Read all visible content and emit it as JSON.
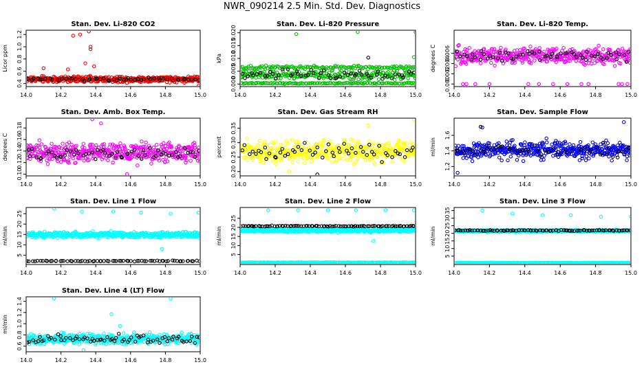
{
  "title": "NWR_090214  2.5 Min. Std. Dev. Diagnostics",
  "colors": {
    "red": "#ff0000",
    "green": "#00c000",
    "magenta": "#ff00ff",
    "yellow": "#ffff00",
    "blue": "#0000ff",
    "cyan": "#00ffff",
    "black": "#000000"
  },
  "chart_data": [
    {
      "type": "scatter",
      "title": "Stan. Dev. Li-820 CO2",
      "ylabel": "Licor ppm",
      "xlim": [
        14.0,
        15.0
      ],
      "ylim": [
        0.35,
        1.27
      ],
      "xticks": [
        14.0,
        14.2,
        14.4,
        14.6,
        14.8,
        15.0
      ],
      "xtick_labels": [
        "14.0",
        "14.2",
        "14.4",
        "14.6",
        "14.8",
        "15.0"
      ],
      "yticks": [
        0.4,
        0.6,
        0.8,
        1.0,
        1.2
      ],
      "ytick_labels": [
        "0.4",
        "0.6",
        "0.8",
        "1.0",
        "1.2"
      ],
      "series": [
        {
          "color": "red",
          "bands": [
            {
              "n": 460,
              "center": 0.47,
              "spread": 0.07
            }
          ],
          "outliers": [
            [
              14.27,
              1.18
            ],
            [
              14.31,
              1.2
            ],
            [
              14.36,
              1.25
            ],
            [
              14.37,
              1.0
            ],
            [
              14.37,
              0.96
            ],
            [
              14.24,
              0.63
            ],
            [
              14.34,
              0.73
            ],
            [
              14.39,
              0.68
            ],
            [
              14.1,
              0.65
            ],
            [
              14.99,
              0.36
            ]
          ]
        },
        {
          "color": "black",
          "bands": [
            {
              "n": 55,
              "center": 0.47,
              "spread": 0.04
            }
          ],
          "outliers": []
        }
      ]
    },
    {
      "type": "scatter",
      "title": "Stan. Dev. Li-820 Pressure",
      "ylabel": "kPa",
      "xlim": [
        14.0,
        15.0
      ],
      "ylim": [
        -0.001,
        0.021
      ],
      "xticks": [
        14.0,
        14.2,
        14.4,
        14.6,
        14.8,
        15.0
      ],
      "xtick_labels": [
        "14.0",
        "14.2",
        "14.4",
        "14.6",
        "14.8",
        "15.0"
      ],
      "yticks": [
        0.0,
        0.005,
        0.01,
        0.015,
        0.02
      ],
      "ytick_labels": [
        "0.000",
        "0.005",
        "0.010",
        "0.015",
        "0.020"
      ],
      "series": [
        {
          "color": "green",
          "bands": [
            {
              "n": 240,
              "center": 0.0035,
              "spread": 0.0025
            },
            {
              "n": 130,
              "center": 0.0065,
              "spread": 0.0008
            },
            {
              "n": 120,
              "center": 0.0003,
              "spread": 0.0003
            }
          ],
          "outliers": [
            [
              14.32,
              0.0195
            ],
            [
              14.67,
              0.0203
            ],
            [
              15.0,
              0.0203
            ],
            [
              14.99,
              0.0105
            ]
          ]
        },
        {
          "color": "black",
          "bands": [
            {
              "n": 55,
              "center": 0.0035,
              "spread": 0.003
            }
          ],
          "outliers": [
            [
              14.73,
              0.0103
            ]
          ]
        }
      ]
    },
    {
      "type": "scatter",
      "title": "Stan. Dev. Li-820 Temp.",
      "ylabel": "degrees C",
      "xlim": [
        14.0,
        15.0
      ],
      "ylim": [
        -0.0005,
        0.0105
      ],
      "xticks": [
        14.0,
        14.2,
        14.4,
        14.6,
        14.8,
        15.0
      ],
      "xtick_labels": [
        "14.0",
        "14.2",
        "14.4",
        "14.6",
        "14.8",
        "15.0"
      ],
      "yticks": [
        0.0,
        0.002,
        0.004,
        0.006
      ],
      "ytick_labels": [
        "0.000",
        "0.002",
        "0.004",
        "0.006"
      ],
      "series": [
        {
          "color": "magenta",
          "bands": [
            {
              "n": 420,
              "center": 0.0055,
              "spread": 0.0024
            }
          ],
          "outliers": [
            [
              14.05,
              0.0
            ],
            [
              14.07,
              0.0
            ],
            [
              14.12,
              0.0
            ],
            [
              14.2,
              0.0
            ],
            [
              14.42,
              0.0
            ],
            [
              14.48,
              0.0
            ],
            [
              14.56,
              0.0
            ],
            [
              14.64,
              0.0
            ],
            [
              14.72,
              0.0
            ],
            [
              14.76,
              0.0
            ],
            [
              14.93,
              0.0
            ],
            [
              14.95,
              0.0
            ],
            [
              14.98,
              0.0
            ]
          ]
        },
        {
          "color": "black",
          "bands": [
            {
              "n": 60,
              "center": 0.0055,
              "spread": 0.0018
            }
          ],
          "outliers": []
        }
      ]
    },
    {
      "type": "scatter",
      "title": "Stan. Dev. Amb. Box Temp.",
      "ylabel": "degrees C",
      "xlim": [
        14.0,
        15.0
      ],
      "ylim": [
        0.097,
        0.197
      ],
      "xticks": [
        14.0,
        14.2,
        14.4,
        14.6,
        14.8,
        15.0
      ],
      "xtick_labels": [
        "14.0",
        "14.2",
        "14.4",
        "14.6",
        "14.8",
        "15.0"
      ],
      "yticks": [
        0.1,
        0.12,
        0.14,
        0.16,
        0.18
      ],
      "ytick_labels": [
        "0.10",
        "0.12",
        "0.14",
        "0.16",
        "0.18"
      ],
      "series": [
        {
          "color": "magenta",
          "bands": [
            {
              "n": 430,
              "center": 0.137,
              "spread": 0.024
            }
          ],
          "outliers": [
            [
              14.38,
              0.195
            ],
            [
              14.43,
              0.188
            ],
            [
              14.58,
              0.1
            ]
          ]
        },
        {
          "color": "black",
          "bands": [
            {
              "n": 60,
              "center": 0.135,
              "spread": 0.015
            }
          ],
          "outliers": []
        }
      ]
    },
    {
      "type": "scatter",
      "title": "Stan. Dev. Gas Stream RH",
      "ylabel": "percent",
      "xlim": [
        14.0,
        15.0
      ],
      "ylim": [
        0.185,
        0.385
      ],
      "xticks": [
        14.0,
        14.2,
        14.4,
        14.6,
        14.8,
        15.0
      ],
      "xtick_labels": [
        "14.0",
        "14.2",
        "14.4",
        "14.6",
        "14.8",
        "15.0"
      ],
      "yticks": [
        0.2,
        0.25,
        0.3,
        0.35
      ],
      "ytick_labels": [
        "0.20",
        "0.25",
        "0.30",
        "0.35"
      ],
      "series": [
        {
          "color": "yellow",
          "bands": [
            {
              "n": 430,
              "center": 0.27,
              "spread": 0.055
            }
          ],
          "outliers": [
            [
              14.99,
              0.38
            ],
            [
              14.73,
              0.36
            ],
            [
              14.28,
              0.2
            ]
          ]
        },
        {
          "color": "black",
          "bands": [
            {
              "n": 55,
              "center": 0.27,
              "spread": 0.045
            }
          ],
          "outliers": [
            [
              14.44,
              0.19
            ]
          ]
        }
      ]
    },
    {
      "type": "scatter",
      "title": "Stan. Dev. Sample Flow",
      "ylabel": "ml/min",
      "xlim": [
        14.0,
        15.0
      ],
      "ylim": [
        1.08,
        1.82
      ],
      "xticks": [
        14.0,
        14.2,
        14.4,
        14.6,
        14.8,
        15.0
      ],
      "xtick_labels": [
        "14.0",
        "14.2",
        "14.4",
        "14.6",
        "14.8",
        "15.0"
      ],
      "yticks": [
        1.2,
        1.4,
        1.6
      ],
      "ytick_labels": [
        "1.2",
        "1.4",
        "1.6"
      ],
      "series": [
        {
          "color": "blue",
          "bands": [
            {
              "n": 450,
              "center": 1.41,
              "spread": 0.17
            }
          ],
          "outliers": [
            [
              14.96,
              1.77
            ],
            [
              14.16,
              1.7
            ],
            [
              14.02,
              1.12
            ]
          ]
        },
        {
          "color": "black",
          "bands": [
            {
              "n": 55,
              "center": 1.4,
              "spread": 0.12
            }
          ],
          "outliers": [
            [
              14.15,
              1.71
            ]
          ]
        }
      ]
    },
    {
      "type": "scatter",
      "title": "Stan. Dev. Line 1 Flow",
      "ylabel": "ml/min",
      "xlim": [
        14.0,
        15.0
      ],
      "ylim": [
        0.5,
        28.0
      ],
      "xticks": [
        14.0,
        14.2,
        14.4,
        14.6,
        14.8,
        15.0
      ],
      "xtick_labels": [
        "14.0",
        "14.2",
        "14.4",
        "14.6",
        "14.8",
        "15.0"
      ],
      "yticks": [
        5,
        10,
        15,
        20,
        25
      ],
      "ytick_labels": [
        "5",
        "10",
        "15",
        "20",
        "25"
      ],
      "series": [
        {
          "color": "cyan",
          "bands": [
            {
              "n": 520,
              "center": 14.8,
              "spread": 2.0
            }
          ],
          "outliers": [
            [
              14.16,
              27.5
            ],
            [
              14.32,
              26.0
            ],
            [
              14.5,
              26.0
            ],
            [
              14.66,
              25.5
            ],
            [
              14.83,
              25.0
            ],
            [
              14.99,
              25.5
            ],
            [
              14.78,
              8.0
            ]
          ]
        },
        {
          "color": "black",
          "bands": [
            {
              "n": 70,
              "center": 2.2,
              "spread": 0.3
            }
          ],
          "outliers": []
        }
      ]
    },
    {
      "type": "scatter",
      "title": "Stan. Dev. Line 2 Flow",
      "ylabel": "ml/min",
      "xlim": [
        14.0,
        15.0
      ],
      "ylim": [
        -0.5,
        31.0
      ],
      "xticks": [
        14.0,
        14.2,
        14.4,
        14.6,
        14.8,
        15.0
      ],
      "xtick_labels": [
        "14.0",
        "14.2",
        "14.4",
        "14.6",
        "14.8",
        "15.0"
      ],
      "yticks": [
        5,
        10,
        15,
        20,
        25
      ],
      "ytick_labels": [
        "5",
        "10",
        "15",
        "20",
        "25"
      ],
      "series": [
        {
          "color": "cyan",
          "bands": [
            {
              "n": 520,
              "center": 18.3,
              "spread": 1.4
            },
            {
              "n": 240,
              "center": 0.6,
              "spread": 0.2
            }
          ],
          "outliers": [
            [
              14.16,
              29.5
            ],
            [
              14.33,
              29.5
            ],
            [
              14.5,
              29.5
            ],
            [
              14.66,
              29.5
            ],
            [
              14.83,
              29.5
            ],
            [
              14.99,
              29.5
            ],
            [
              14.76,
              12.5
            ]
          ]
        },
        {
          "color": "black",
          "bands": [
            {
              "n": 90,
              "center": 20.7,
              "spread": 0.35
            }
          ],
          "outliers": []
        }
      ]
    },
    {
      "type": "scatter",
      "title": "Stan. Dev. Line 3 Flow",
      "ylabel": "ml/min",
      "xlim": [
        14.0,
        15.0
      ],
      "ylim": [
        -0.5,
        37.0
      ],
      "xticks": [
        14.0,
        14.2,
        14.4,
        14.6,
        14.8,
        15.0
      ],
      "xtick_labels": [
        "14.0",
        "14.2",
        "14.4",
        "14.6",
        "14.8",
        "15.0"
      ],
      "yticks": [
        5,
        10,
        15,
        20,
        25,
        30,
        35
      ],
      "ytick_labels": [
        "5",
        "10",
        "15",
        "20",
        "25",
        "30",
        "35"
      ],
      "series": [
        {
          "color": "cyan",
          "bands": [
            {
              "n": 480,
              "center": 21.6,
              "spread": 1.0
            },
            {
              "n": 240,
              "center": 0.6,
              "spread": 0.2
            }
          ],
          "outliers": [
            [
              14.16,
              35.0
            ],
            [
              14.33,
              33.0
            ],
            [
              14.5,
              32.0
            ],
            [
              14.66,
              32.0
            ],
            [
              14.83,
              31.0
            ],
            [
              15.0,
              31.0
            ]
          ]
        },
        {
          "color": "black",
          "bands": [
            {
              "n": 90,
              "center": 21.9,
              "spread": 0.4
            }
          ],
          "outliers": []
        }
      ]
    },
    {
      "type": "scatter",
      "title": "Stan. Dev. Line 4 (LT) Flow",
      "ylabel": "ml/min",
      "xlim": [
        14.0,
        15.0
      ],
      "ylim": [
        0.5,
        1.48
      ],
      "xticks": [
        14.0,
        14.2,
        14.4,
        14.6,
        14.8,
        15.0
      ],
      "xtick_labels": [
        "14.0",
        "14.2",
        "14.4",
        "14.6",
        "14.8",
        "15.0"
      ],
      "yticks": [
        0.6,
        0.8,
        1.0,
        1.2,
        1.4
      ],
      "ytick_labels": [
        "0.6",
        "0.8",
        "1.0",
        "1.2",
        "1.4"
      ],
      "series": [
        {
          "color": "cyan",
          "bands": [
            {
              "n": 520,
              "center": 0.73,
              "spread": 0.13
            }
          ],
          "outliers": [
            [
              14.16,
              1.45
            ],
            [
              14.83,
              1.45
            ],
            [
              14.49,
              1.17
            ],
            [
              14.33,
              0.53
            ],
            [
              14.54,
              0.96
            ]
          ]
        },
        {
          "color": "black",
          "bands": [
            {
              "n": 70,
              "center": 0.73,
              "spread": 0.1
            }
          ],
          "outliers": []
        }
      ]
    }
  ]
}
